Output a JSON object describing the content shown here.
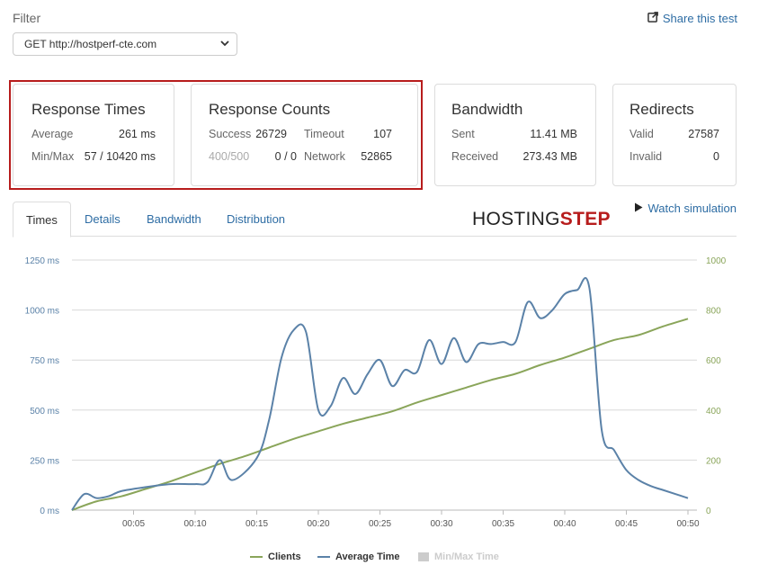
{
  "filter": {
    "label": "Filter",
    "selected": "GET http://hostperf-cte.com"
  },
  "share": {
    "label": "Share this test",
    "icon": "share-icon"
  },
  "cards": {
    "response_times": {
      "title": "Response Times",
      "average_label": "Average",
      "average_value": "261 ms",
      "minmax_label": "Min/Max",
      "minmax_value": "57 / 10420 ms"
    },
    "response_counts": {
      "title": "Response Counts",
      "success_label": "Success",
      "success_value": "26729",
      "timeout_label": "Timeout",
      "timeout_value": "107",
      "e400_label": "400/500",
      "e400_value": "0 / 0",
      "network_label": "Network",
      "network_value": "52865"
    },
    "bandwidth": {
      "title": "Bandwidth",
      "sent_label": "Sent",
      "sent_value": "11.41 MB",
      "received_label": "Received",
      "received_value": "273.43 MB"
    },
    "redirects": {
      "title": "Redirects",
      "valid_label": "Valid",
      "valid_value": "27587",
      "invalid_label": "Invalid",
      "invalid_value": "0"
    }
  },
  "tabs": [
    {
      "label": "Times",
      "active": true
    },
    {
      "label": "Details",
      "active": false
    },
    {
      "label": "Bandwidth",
      "active": false
    },
    {
      "label": "Distribution",
      "active": false
    }
  ],
  "watch_simulation": {
    "label": "Watch simulation",
    "icon": "play-icon"
  },
  "logo": {
    "part1": "HOSTING",
    "part2": "STEP"
  },
  "colors": {
    "link": "#2e6da4",
    "clients": "#8aa55a",
    "average": "#5b82a8",
    "highlight": "#b71c1c",
    "minmax": "#cccccc"
  },
  "chart_data": {
    "type": "line",
    "x_ticks": [
      "00:05",
      "00:10",
      "00:15",
      "00:20",
      "00:25",
      "00:30",
      "00:35",
      "00:40",
      "00:45",
      "00:50"
    ],
    "y_left_ticks": [
      "0 ms",
      "250 ms",
      "500 ms",
      "750 ms",
      "1000 ms",
      "1250 ms"
    ],
    "y_right_ticks": [
      "0",
      "200",
      "400",
      "600",
      "800",
      "1000"
    ],
    "ylim_left": [
      0,
      1250
    ],
    "ylim_right": [
      0,
      1000
    ],
    "xlim_seconds": [
      0,
      3000
    ],
    "grid": true,
    "legend_position": "bottom",
    "series": [
      {
        "name": "Clients",
        "axis": "right",
        "x": [
          "00:00",
          "00:02",
          "00:04",
          "00:06",
          "00:08",
          "00:10",
          "00:12",
          "00:14",
          "00:16",
          "00:18",
          "00:20",
          "00:22",
          "00:24",
          "00:26",
          "00:28",
          "00:30",
          "00:32",
          "00:34",
          "00:36",
          "00:38",
          "00:40",
          "00:42",
          "00:44",
          "00:46",
          "00:48",
          "00:50"
        ],
        "values": [
          0,
          35,
          55,
          85,
          115,
          150,
          185,
          215,
          250,
          285,
          315,
          345,
          370,
          395,
          430,
          460,
          490,
          520,
          545,
          580,
          610,
          645,
          680,
          700,
          735,
          765
        ]
      },
      {
        "name": "Average Time",
        "axis": "left",
        "x": [
          "00:00",
          "00:01",
          "00:02",
          "00:03",
          "00:04",
          "00:06",
          "00:08",
          "00:10",
          "00:11",
          "00:12",
          "00:13",
          "00:15",
          "00:16",
          "00:17",
          "00:18",
          "00:19",
          "00:20",
          "00:21",
          "00:22",
          "00:23",
          "00:24",
          "00:25",
          "00:26",
          "00:27",
          "00:28",
          "00:29",
          "00:30",
          "00:31",
          "00:32",
          "00:33",
          "00:34",
          "00:35",
          "00:36",
          "00:37",
          "00:38",
          "00:39",
          "00:40",
          "00:41",
          "00:42",
          "00:43",
          "00:44",
          "00:45",
          "00:46",
          "00:47",
          "00:48",
          "00:49",
          "00:50"
        ],
        "values": [
          0,
          80,
          60,
          70,
          95,
          115,
          130,
          130,
          140,
          250,
          150,
          260,
          450,
          760,
          900,
          890,
          500,
          520,
          660,
          580,
          680,
          750,
          620,
          700,
          690,
          850,
          730,
          860,
          740,
          830,
          830,
          840,
          840,
          1040,
          960,
          1000,
          1080,
          1100,
          1110,
          400,
          300,
          200,
          150,
          120,
          100,
          80,
          60
        ]
      },
      {
        "name": "Min/Max Time",
        "axis": "left",
        "values": []
      }
    ]
  }
}
